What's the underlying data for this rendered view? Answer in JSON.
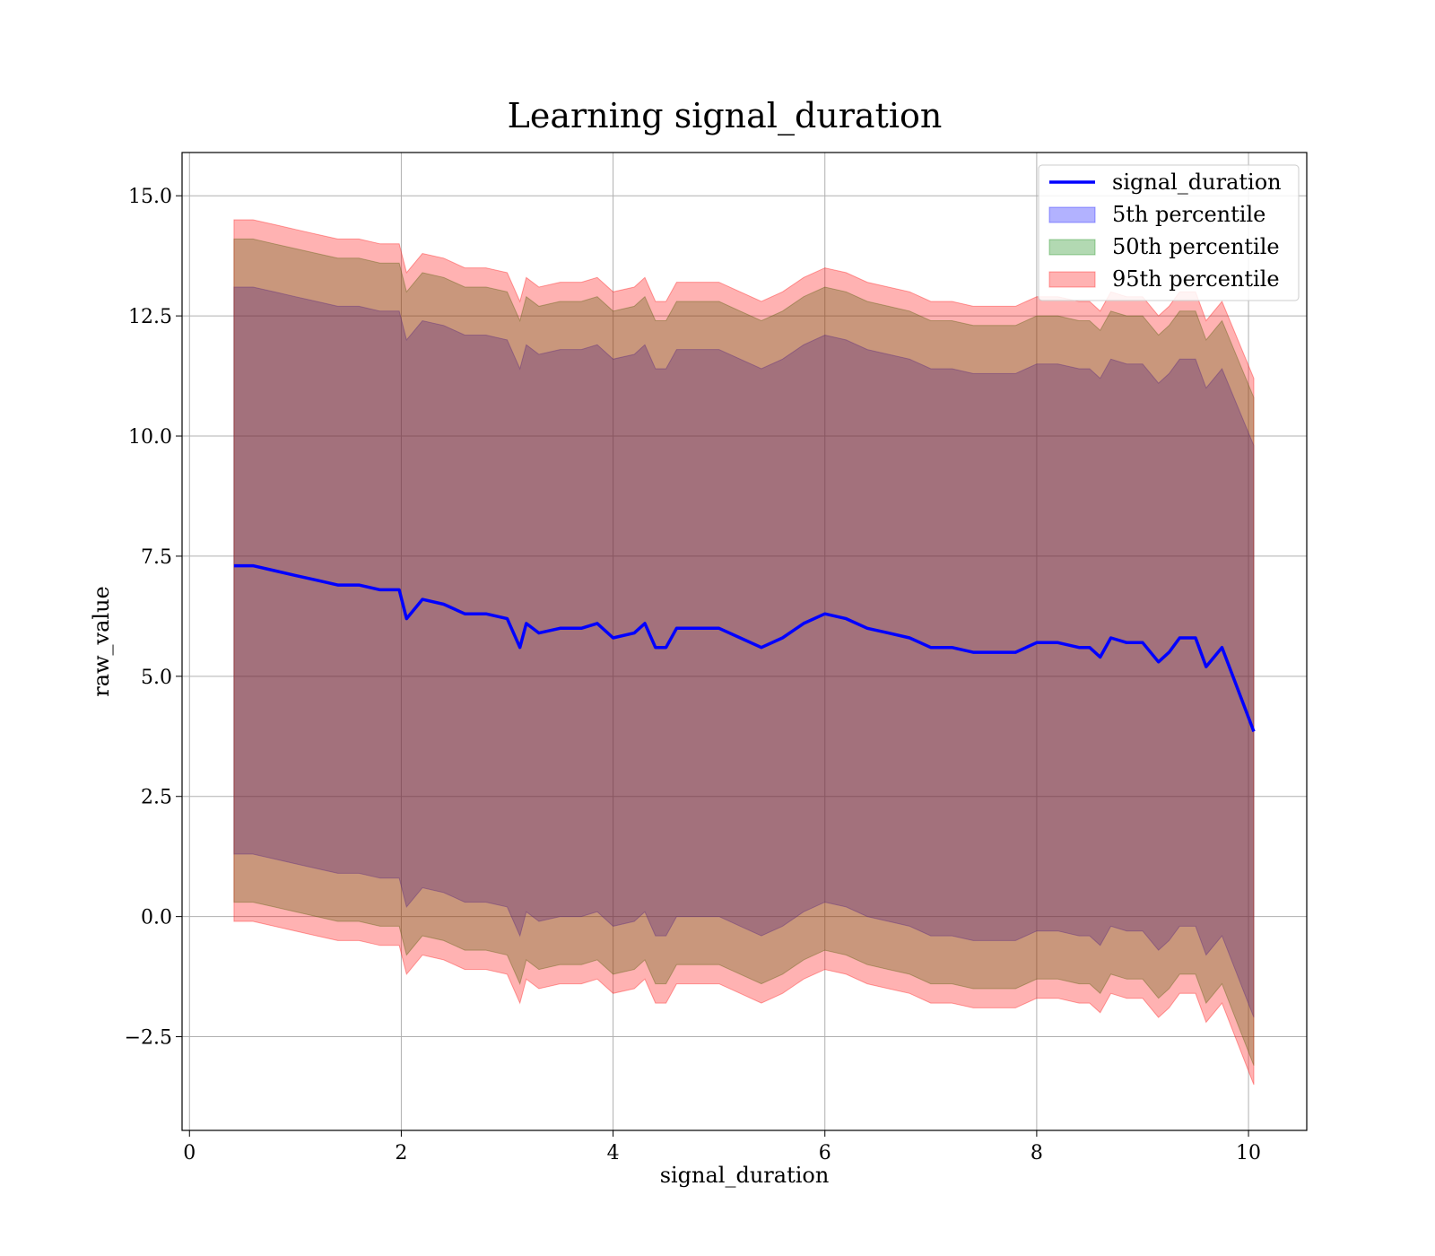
{
  "chart_data": {
    "type": "area",
    "title": "Learning signal_duration",
    "xlabel": "signal_duration",
    "ylabel": "raw_value",
    "xlim": [
      -0.07,
      10.55
    ],
    "ylim": [
      -4.45,
      15.9
    ],
    "xticks": [
      0,
      2,
      4,
      6,
      8,
      10
    ],
    "xtick_labels": [
      "0",
      "2",
      "4",
      "6",
      "8",
      "10"
    ],
    "yticks": [
      -2.5,
      0,
      2.5,
      5,
      7.5,
      10,
      12.5,
      15
    ],
    "ytick_labels": [
      "−2.5",
      "0.0",
      "2.5",
      "5.0",
      "7.5",
      "10.0",
      "12.5",
      "15.0"
    ],
    "grid": true,
    "legend_position": "top-right",
    "colors": {
      "line": "#0000ff",
      "band_5th": "#0000ff",
      "band_50th": "#008000",
      "band_95th": "#ff0000"
    },
    "x": [
      0.42,
      0.6,
      0.8,
      1.0,
      1.2,
      1.4,
      1.6,
      1.8,
      1.98,
      2.05,
      2.2,
      2.4,
      2.6,
      2.8,
      3.0,
      3.12,
      3.18,
      3.3,
      3.5,
      3.7,
      3.85,
      4.0,
      4.2,
      4.3,
      4.4,
      4.5,
      4.6,
      4.8,
      5.0,
      5.2,
      5.4,
      5.6,
      5.8,
      6.0,
      6.2,
      6.4,
      6.6,
      6.8,
      7.0,
      7.2,
      7.4,
      7.6,
      7.8,
      8.0,
      8.2,
      8.4,
      8.5,
      8.6,
      8.7,
      8.85,
      9.0,
      9.15,
      9.25,
      9.35,
      9.5,
      9.6,
      9.75,
      10.05
    ],
    "series": [
      {
        "name": "signal_duration",
        "kind": "line",
        "values": [
          7.3,
          7.3,
          7.2,
          7.1,
          7.0,
          6.9,
          6.9,
          6.8,
          6.8,
          6.2,
          6.6,
          6.5,
          6.3,
          6.3,
          6.2,
          5.6,
          6.1,
          5.9,
          6.0,
          6.0,
          6.1,
          5.8,
          5.9,
          6.1,
          5.6,
          5.6,
          6.0,
          6.0,
          6.0,
          5.8,
          5.6,
          5.8,
          6.1,
          6.3,
          6.2,
          6.0,
          5.9,
          5.8,
          5.6,
          5.6,
          5.5,
          5.5,
          5.5,
          5.7,
          5.7,
          5.6,
          5.6,
          5.4,
          5.8,
          5.7,
          5.7,
          5.3,
          5.5,
          5.8,
          5.8,
          5.2,
          5.6,
          3.85
        ]
      },
      {
        "name": "5th percentile",
        "kind": "band",
        "upper": [
          13.1,
          13.1,
          13.0,
          12.9,
          12.8,
          12.7,
          12.7,
          12.6,
          12.6,
          12.0,
          12.4,
          12.3,
          12.1,
          12.1,
          12.0,
          11.4,
          11.9,
          11.7,
          11.8,
          11.8,
          11.9,
          11.6,
          11.7,
          11.9,
          11.4,
          11.4,
          11.8,
          11.8,
          11.8,
          11.6,
          11.4,
          11.6,
          11.9,
          12.1,
          12.0,
          11.8,
          11.7,
          11.6,
          11.4,
          11.4,
          11.3,
          11.3,
          11.3,
          11.5,
          11.5,
          11.4,
          11.4,
          11.2,
          11.6,
          11.5,
          11.5,
          11.1,
          11.3,
          11.6,
          11.6,
          11.0,
          11.4,
          9.8
        ],
        "lower": [
          1.3,
          1.3,
          1.2,
          1.1,
          1.0,
          0.9,
          0.9,
          0.8,
          0.8,
          0.2,
          0.6,
          0.5,
          0.3,
          0.3,
          0.2,
          -0.4,
          0.1,
          -0.1,
          0.0,
          0.0,
          0.1,
          -0.2,
          -0.1,
          0.1,
          -0.4,
          -0.4,
          0.0,
          0.0,
          0.0,
          -0.2,
          -0.4,
          -0.2,
          0.1,
          0.3,
          0.2,
          0.0,
          -0.1,
          -0.2,
          -0.4,
          -0.4,
          -0.5,
          -0.5,
          -0.5,
          -0.3,
          -0.3,
          -0.4,
          -0.4,
          -0.6,
          -0.2,
          -0.3,
          -0.3,
          -0.7,
          -0.5,
          -0.2,
          -0.2,
          -0.8,
          -0.4,
          -2.1
        ]
      },
      {
        "name": "50th percentile",
        "kind": "band",
        "upper": [
          14.1,
          14.1,
          14.0,
          13.9,
          13.8,
          13.7,
          13.7,
          13.6,
          13.6,
          13.0,
          13.4,
          13.3,
          13.1,
          13.1,
          13.0,
          12.4,
          12.9,
          12.7,
          12.8,
          12.8,
          12.9,
          12.6,
          12.7,
          12.9,
          12.4,
          12.4,
          12.8,
          12.8,
          12.8,
          12.6,
          12.4,
          12.6,
          12.9,
          13.1,
          13.0,
          12.8,
          12.7,
          12.6,
          12.4,
          12.4,
          12.3,
          12.3,
          12.3,
          12.5,
          12.5,
          12.4,
          12.4,
          12.2,
          12.6,
          12.5,
          12.5,
          12.1,
          12.3,
          12.6,
          12.6,
          12.0,
          12.4,
          10.8
        ],
        "lower": [
          0.3,
          0.3,
          0.2,
          0.1,
          0.0,
          -0.1,
          -0.1,
          -0.2,
          -0.2,
          -0.8,
          -0.4,
          -0.5,
          -0.7,
          -0.7,
          -0.8,
          -1.4,
          -0.9,
          -1.1,
          -1.0,
          -1.0,
          -0.9,
          -1.2,
          -1.1,
          -0.9,
          -1.4,
          -1.4,
          -1.0,
          -1.0,
          -1.0,
          -1.2,
          -1.4,
          -1.2,
          -0.9,
          -0.7,
          -0.8,
          -1.0,
          -1.1,
          -1.2,
          -1.4,
          -1.4,
          -1.5,
          -1.5,
          -1.5,
          -1.3,
          -1.3,
          -1.4,
          -1.4,
          -1.6,
          -1.2,
          -1.3,
          -1.3,
          -1.7,
          -1.5,
          -1.2,
          -1.2,
          -1.8,
          -1.4,
          -3.1
        ]
      },
      {
        "name": "95th percentile",
        "kind": "band",
        "upper": [
          14.5,
          14.5,
          14.4,
          14.3,
          14.2,
          14.1,
          14.1,
          14.0,
          14.0,
          13.4,
          13.8,
          13.7,
          13.5,
          13.5,
          13.4,
          12.8,
          13.3,
          13.1,
          13.2,
          13.2,
          13.3,
          13.0,
          13.1,
          13.3,
          12.8,
          12.8,
          13.2,
          13.2,
          13.2,
          13.0,
          12.8,
          13.0,
          13.3,
          13.5,
          13.4,
          13.2,
          13.1,
          13.0,
          12.8,
          12.8,
          12.7,
          12.7,
          12.7,
          12.9,
          12.9,
          12.8,
          12.8,
          12.6,
          13.0,
          12.9,
          12.9,
          12.5,
          12.7,
          13.0,
          13.0,
          12.4,
          12.8,
          11.2
        ],
        "lower": [
          -0.1,
          -0.1,
          -0.2,
          -0.3,
          -0.4,
          -0.5,
          -0.5,
          -0.6,
          -0.6,
          -1.2,
          -0.8,
          -0.9,
          -1.1,
          -1.1,
          -1.2,
          -1.8,
          -1.3,
          -1.5,
          -1.4,
          -1.4,
          -1.3,
          -1.6,
          -1.5,
          -1.3,
          -1.8,
          -1.8,
          -1.4,
          -1.4,
          -1.4,
          -1.6,
          -1.8,
          -1.6,
          -1.3,
          -1.1,
          -1.2,
          -1.4,
          -1.5,
          -1.6,
          -1.8,
          -1.8,
          -1.9,
          -1.9,
          -1.9,
          -1.7,
          -1.7,
          -1.8,
          -1.8,
          -2.0,
          -1.6,
          -1.7,
          -1.7,
          -2.1,
          -1.9,
          -1.6,
          -1.6,
          -2.2,
          -1.8,
          -3.5
        ]
      }
    ]
  }
}
